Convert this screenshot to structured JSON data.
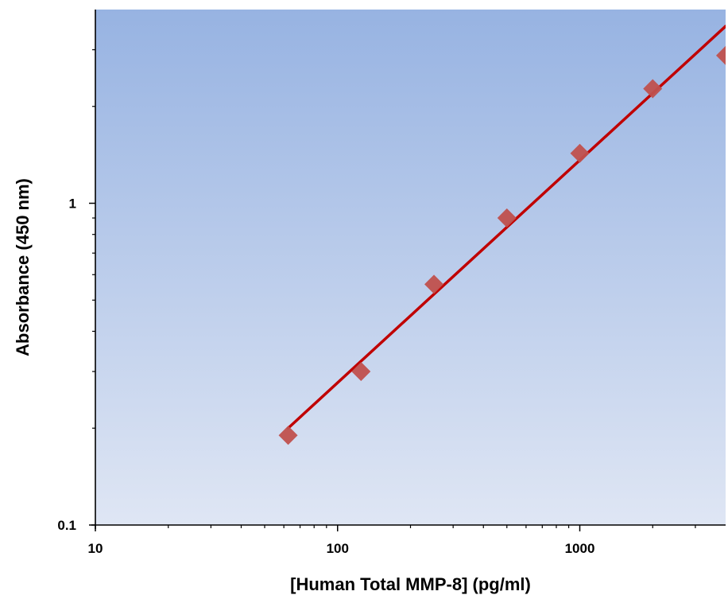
{
  "chart_data": {
    "type": "scatter",
    "xlabel": "[Human Total MMP-8] (pg/ml)",
    "ylabel": "Absorbance (450 nm)",
    "x_scale": "log",
    "y_scale": "log",
    "xlim": [
      10,
      4000
    ],
    "ylim": [
      0.1,
      4
    ],
    "x_ticks": [
      10,
      100,
      1000
    ],
    "x_tick_labels": [
      "10",
      "100",
      "1000"
    ],
    "y_ticks": [
      0.1,
      1
    ],
    "y_tick_labels": [
      "0.1",
      "1"
    ],
    "grid": false,
    "series": [
      {
        "marker": "diamond",
        "color": "#c0504d",
        "points": [
          {
            "x": 62.5,
            "y": 0.19
          },
          {
            "x": 125,
            "y": 0.3
          },
          {
            "x": 250,
            "y": 0.56
          },
          {
            "x": 500,
            "y": 0.9
          },
          {
            "x": 1000,
            "y": 1.43
          },
          {
            "x": 2000,
            "y": 2.27
          },
          {
            "x": 4000,
            "y": 2.88
          }
        ]
      }
    ],
    "fit_line": {
      "type": "power",
      "color": "#c00000",
      "x_range": [
        62.5,
        4000
      ],
      "endpoints": [
        {
          "x": 62.5,
          "y": 0.2
        },
        {
          "x": 4000,
          "y": 3.55
        }
      ]
    },
    "plot_background": {
      "gradient_top": "#97b3e2",
      "gradient_bottom": "#dfe6f4"
    }
  }
}
